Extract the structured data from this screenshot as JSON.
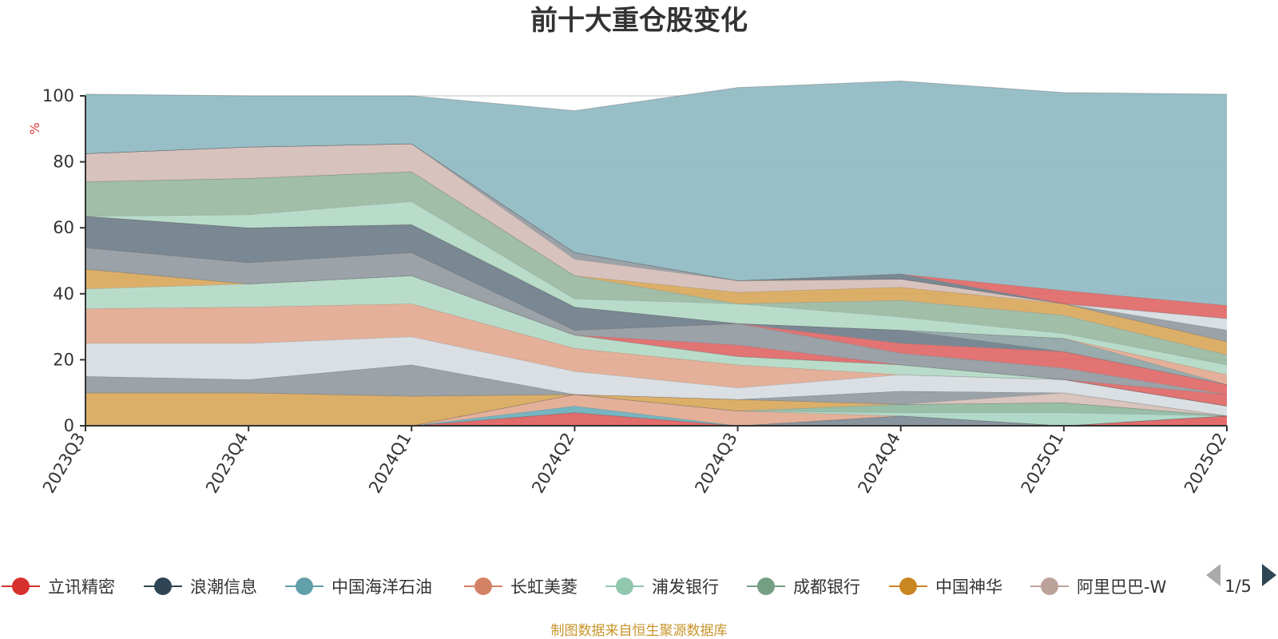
{
  "chart_data": {
    "type": "area",
    "stacked": true,
    "title": "前十大重仓股变化",
    "ylabel": "%",
    "ylim": [
      0,
      100
    ],
    "yticks": [
      0,
      20,
      40,
      60,
      80,
      100
    ],
    "grid": true,
    "categories": [
      "2023Q3",
      "2023Q4",
      "2024Q1",
      "2024Q2",
      "2024Q3",
      "2024Q4",
      "2025Q1",
      "2025Q2"
    ],
    "series": [
      {
        "key": "s1",
        "color": "#e06060",
        "values": [
          0,
          0,
          0,
          4,
          0,
          0,
          0,
          3
        ]
      },
      {
        "key": "s2",
        "color": "#7f8c96",
        "values": [
          0,
          0,
          0,
          0,
          0,
          3,
          0,
          0
        ]
      },
      {
        "key": "s3",
        "color": "#6aafbb",
        "values": [
          0,
          0,
          0,
          2,
          0,
          0,
          0,
          0
        ]
      },
      {
        "key": "s4",
        "color": "#e2a990",
        "values": [
          0,
          0,
          0,
          3.5,
          4.5,
          0,
          0,
          0
        ]
      },
      {
        "key": "s5",
        "color": "#a9d6c4",
        "values": [
          0,
          0,
          0,
          0,
          0,
          1,
          4,
          0
        ]
      },
      {
        "key": "s6",
        "color": "#8fb8a0",
        "values": [
          0,
          0,
          0,
          0,
          0,
          2.5,
          3,
          0
        ]
      },
      {
        "key": "s7",
        "color": "#d9a85c",
        "values": [
          10,
          10,
          9,
          0,
          3.5,
          0,
          0,
          0
        ]
      },
      {
        "key": "s8",
        "color": "#d6bfb8",
        "values": [
          0,
          0,
          0,
          0,
          0,
          0,
          3,
          0
        ]
      },
      {
        "key": "s9",
        "color": "#939aa1",
        "values": [
          5,
          4,
          9.5,
          0,
          0,
          4,
          0,
          0
        ]
      },
      {
        "key": "s10",
        "color": "#d7dce1",
        "values": [
          10,
          11,
          8.5,
          7,
          3.5,
          5,
          4,
          3
        ]
      },
      {
        "key": "s11",
        "color": "#e2a990",
        "values": [
          10.5,
          11,
          10,
          7,
          7,
          0,
          0,
          0
        ]
      },
      {
        "key": "s12",
        "color": "#b3d9c6",
        "values": [
          6,
          7,
          8.5,
          4,
          2.5,
          3,
          0,
          0
        ]
      },
      {
        "key": "s13",
        "color": "#d9a85c",
        "values": [
          6,
          0,
          0,
          0,
          0,
          0,
          0,
          0
        ]
      },
      {
        "key": "s14",
        "color": "#e06868",
        "values": [
          0,
          0,
          0,
          0,
          3.5,
          0,
          0,
          3.5
        ]
      },
      {
        "key": "s15",
        "color": "#939aa1",
        "values": [
          6.5,
          6.5,
          7,
          1.5,
          6.5,
          3.5,
          3.5,
          0
        ]
      },
      {
        "key": "s16",
        "color": "#e06868",
        "values": [
          0,
          0,
          0,
          0,
          0,
          3,
          5,
          3
        ]
      },
      {
        "key": "s17",
        "color": "#6f7e8a",
        "values": [
          9.5,
          10.5,
          8.5,
          7,
          0,
          4,
          0,
          0
        ]
      },
      {
        "key": "s18",
        "color": "#8fa5a6",
        "values": [
          0,
          0,
          0,
          0,
          0,
          0,
          4,
          0
        ]
      },
      {
        "key": "s19",
        "color": "#e2a990",
        "values": [
          0,
          0,
          0,
          0,
          0,
          0,
          0,
          3
        ]
      },
      {
        "key": "s20",
        "color": "#b3d9c6",
        "values": [
          0,
          4,
          7,
          2.5,
          6,
          4,
          1.5,
          3
        ]
      },
      {
        "key": "s21",
        "color": "#99b8a2",
        "values": [
          10.5,
          11,
          9,
          7,
          0,
          5,
          5.5,
          3
        ]
      },
      {
        "key": "s22",
        "color": "#d9a85c",
        "values": [
          0,
          0,
          0,
          0,
          3.5,
          4,
          3.5,
          4
        ]
      },
      {
        "key": "s23",
        "color": "#d4bdb7",
        "values": [
          8.5,
          9.5,
          8.5,
          5,
          3.5,
          2.5,
          0,
          0
        ]
      },
      {
        "key": "s24",
        "color": "#939aa1",
        "values": [
          0,
          0,
          0,
          2,
          0,
          0,
          0,
          3.5
        ]
      },
      {
        "key": "s25",
        "color": "#d7dce1",
        "values": [
          0,
          0,
          0,
          0,
          0,
          0,
          0,
          3.5
        ]
      },
      {
        "key": "s26",
        "color": "#6f7e8a",
        "values": [
          0,
          0,
          0,
          0,
          0,
          1.5,
          0,
          0
        ]
      },
      {
        "key": "s27",
        "color": "#e06868",
        "values": [
          0,
          0,
          0,
          0,
          0,
          0,
          4,
          4
        ]
      },
      {
        "key": "s28",
        "color": "#8fbac2",
        "values": [
          18,
          15.5,
          14.5,
          43,
          58.5,
          58.5,
          60,
          64
        ]
      }
    ]
  },
  "legend": {
    "items": [
      {
        "name": "立讯精密",
        "color": "#d7312e"
      },
      {
        "name": "浪潮信息",
        "color": "#2f4554"
      },
      {
        "name": "中国海洋石油",
        "color": "#61a0a8"
      },
      {
        "name": "长虹美菱",
        "color": "#d48265"
      },
      {
        "name": "浦发银行",
        "color": "#91c7ae"
      },
      {
        "name": "成都银行",
        "color": "#749f83"
      },
      {
        "name": "中国神华",
        "color": "#ca8622"
      },
      {
        "name": "阿里巴巴-W",
        "color": "#bda29a"
      }
    ],
    "page": "1/5"
  },
  "source": "制图数据来自恒生聚源数据库"
}
